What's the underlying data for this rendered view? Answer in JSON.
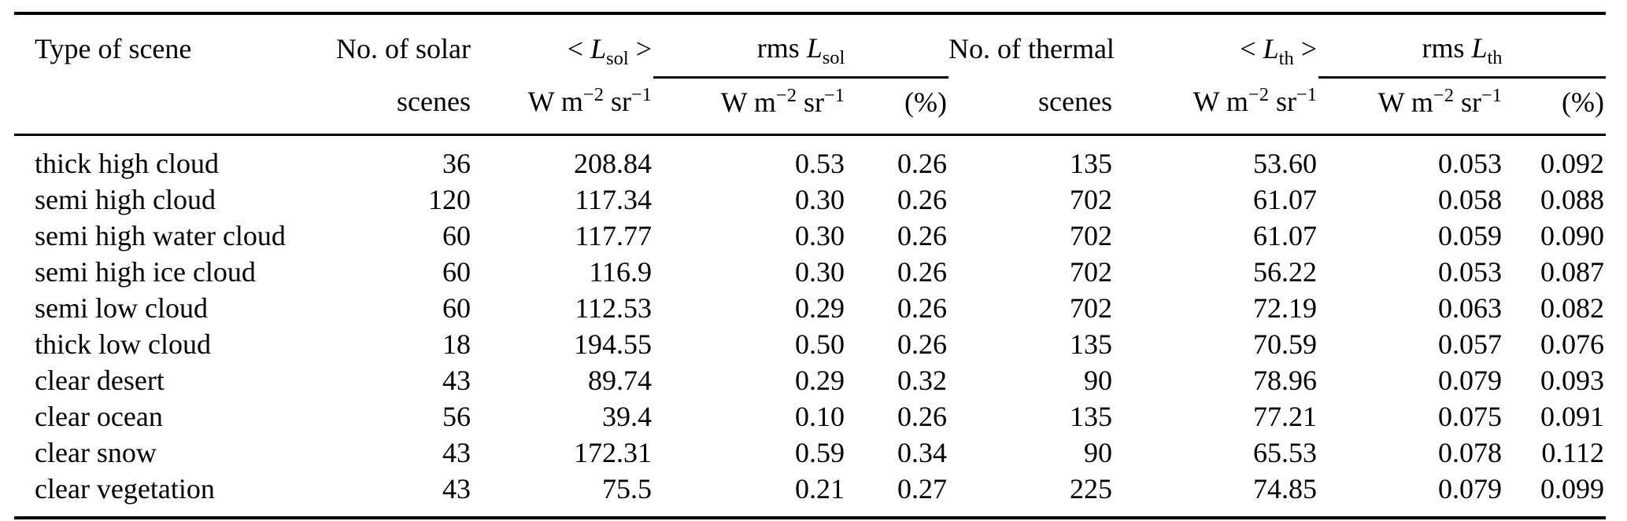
{
  "colors": {
    "background": "#ffffff",
    "text": "#000000",
    "rule": "#000000"
  },
  "table": {
    "header": {
      "row1": [
        "Type of scene",
        "No. of solar",
        "< *L*_{sol} >",
        "rms *L*_{sol}",
        "No. of thermal",
        "< *L*_{th} >",
        "rms *L*_{th}"
      ],
      "row2": [
        "",
        "scenes",
        "W m^{−2} sr^{−1}",
        "W m^{−2} sr^{−1}",
        "(%)",
        "scenes",
        "W m^{−2} sr^{−1}",
        "W m^{−2} sr^{−1}",
        "(%)"
      ]
    },
    "cell_names": [
      "cell-scene-type",
      "cell-solar-scenes-count",
      "cell-solar-mean-radiance",
      "cell-solar-rms-radiance",
      "cell-solar-rms-percent",
      "cell-thermal-scenes-count",
      "cell-thermal-mean-radiance",
      "cell-thermal-rms-radiance",
      "cell-thermal-rms-percent"
    ],
    "rows": [
      [
        "thick high cloud",
        "36",
        "208.84",
        "0.53",
        "0.26",
        "135",
        "53.60",
        "0.053",
        "0.092"
      ],
      [
        "semi high cloud",
        "120",
        "117.34",
        "0.30",
        "0.26",
        "702",
        "61.07",
        "0.058",
        "0.088"
      ],
      [
        "semi high water cloud",
        "60",
        "117.77",
        "0.30",
        "0.26",
        "702",
        "61.07",
        "0.059",
        "0.090"
      ],
      [
        "semi high ice cloud",
        "60",
        "116.9",
        "0.30",
        "0.26",
        "702",
        "56.22",
        "0.053",
        "0.087"
      ],
      [
        "semi low cloud",
        "60",
        "112.53",
        "0.29",
        "0.26",
        "702",
        "72.19",
        "0.063",
        "0.082"
      ],
      [
        "thick low cloud",
        "18",
        "194.55",
        "0.50",
        "0.26",
        "135",
        "70.59",
        "0.057",
        "0.076"
      ],
      [
        "clear desert",
        "43",
        "89.74",
        "0.29",
        "0.32",
        "90",
        "78.96",
        "0.079",
        "0.093"
      ],
      [
        "clear ocean",
        "56",
        "39.4",
        "0.10",
        "0.26",
        "135",
        "77.21",
        "0.075",
        "0.091"
      ],
      [
        "clear snow",
        "43",
        "172.31",
        "0.59",
        "0.34",
        "90",
        "65.53",
        "0.078",
        "0.112"
      ],
      [
        "clear vegetation",
        "43",
        "75.5",
        "0.21",
        "0.27",
        "225",
        "74.85",
        "0.079",
        "0.099"
      ]
    ]
  }
}
